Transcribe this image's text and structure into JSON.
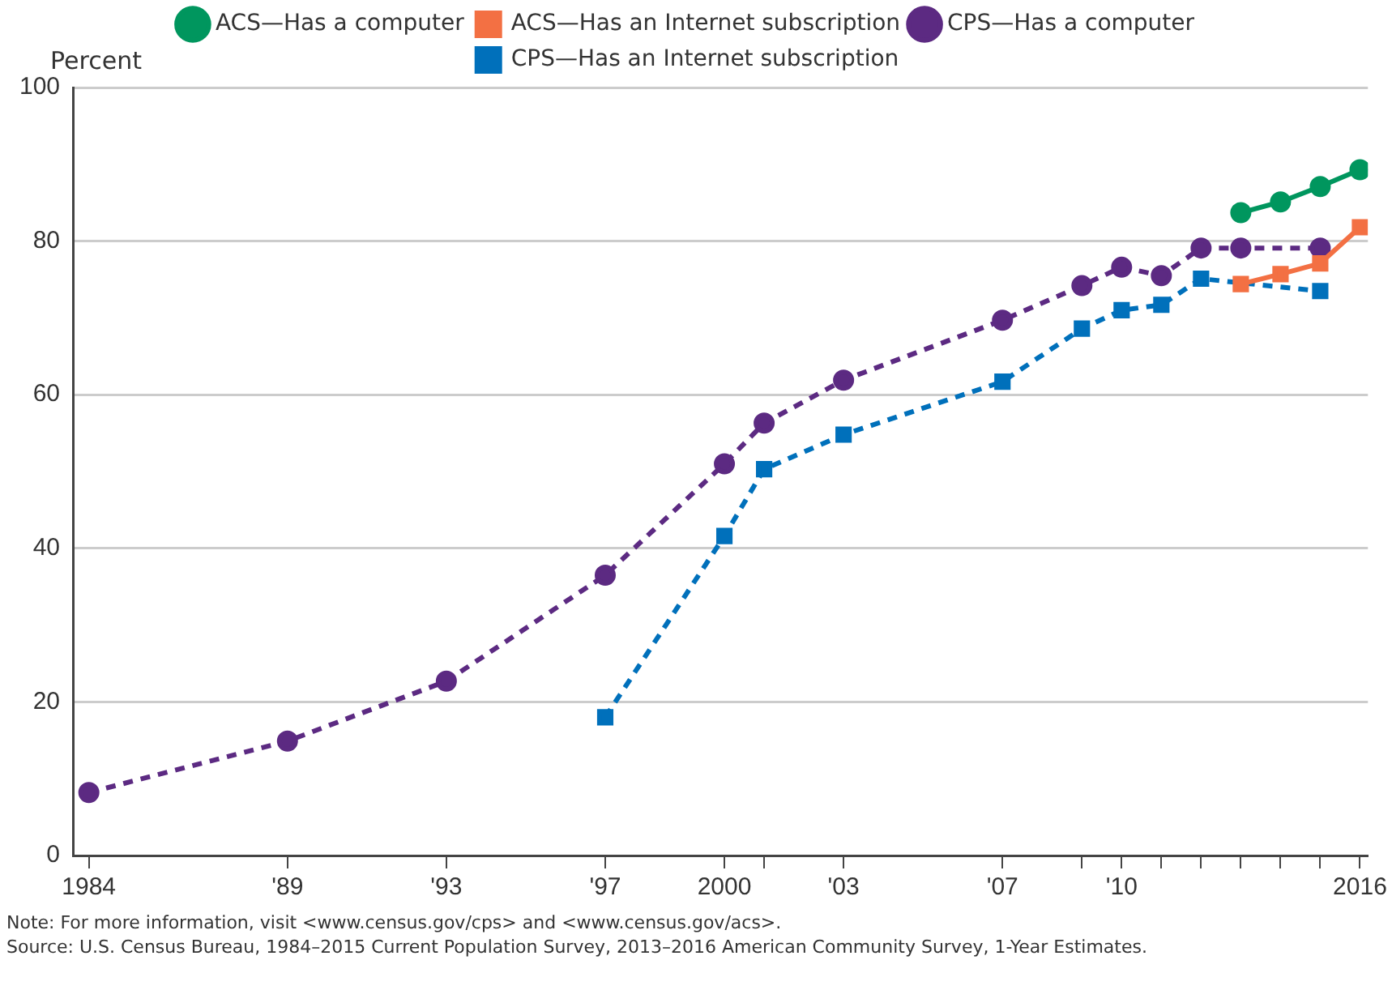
{
  "chart_data": {
    "type": "line",
    "ylabel": "Percent",
    "xlim": [
      1983.6,
      2016.2
    ],
    "ylim": [
      0,
      100
    ],
    "xticks": [
      1984,
      {
        "value": 1989,
        "label": "'89"
      },
      {
        "value": 1993,
        "label": "'93"
      },
      {
        "value": 1997,
        "label": "'97"
      },
      2000,
      {
        "value": 2001,
        "label": null
      },
      {
        "value": 2003,
        "label": "'03"
      },
      {
        "value": 2007,
        "label": "'07"
      },
      {
        "value": 2009,
        "label": null
      },
      {
        "value": 2010,
        "label": "'10"
      },
      {
        "value": 2011,
        "label": null
      },
      {
        "value": 2012,
        "label": null
      },
      {
        "value": 2013,
        "label": null
      },
      {
        "value": 2014,
        "label": null
      },
      {
        "value": 2015,
        "label": null
      },
      2016
    ],
    "yticks": [
      0,
      20,
      40,
      60,
      80,
      100
    ],
    "grid": "y",
    "legend": "top",
    "series": [
      {
        "name": "ACS—Has a computer",
        "color": "#00965e",
        "marker": "circle",
        "line_style": "solid",
        "x": [
          2013,
          2014,
          2015,
          2016
        ],
        "values": [
          83.7,
          85.1,
          87.1,
          89.3
        ]
      },
      {
        "name": "ACS—Has an Internet subscription",
        "color": "#f37043",
        "marker": "square",
        "line_style": "solid",
        "x": [
          2013,
          2014,
          2015,
          2016
        ],
        "values": [
          74.4,
          75.7,
          77.1,
          81.8
        ]
      },
      {
        "name": "CPS—Has a computer",
        "color": "#5c2a82",
        "marker": "circle",
        "line_style": "dashed",
        "x": [
          1984,
          1989,
          1993,
          1997,
          2000,
          2001,
          2003,
          2007,
          2009,
          2010,
          2011,
          2012,
          2013,
          2015
        ],
        "values": [
          8.2,
          14.9,
          22.7,
          36.5,
          51.0,
          56.3,
          61.9,
          69.7,
          74.2,
          76.6,
          75.5,
          79.1,
          79.1,
          79.1
        ]
      },
      {
        "name": "CPS—Has an Internet subscription",
        "color": "#0070bb",
        "marker": "square",
        "line_style": "dashed",
        "x": [
          1997,
          2000,
          2001,
          2003,
          2007,
          2009,
          2010,
          2011,
          2012,
          2015
        ],
        "values": [
          18.0,
          41.6,
          50.3,
          54.8,
          61.7,
          68.6,
          71.0,
          71.7,
          75.1,
          73.5
        ]
      }
    ],
    "annotations": [
      "Note: For more information, visit <www.census.gov/cps> and <www.census.gov/acs>.",
      "Source: U.S. Census Bureau, 1984–2015 Current Population Survey, 2013–2016 American Community Survey, 1-Year Estimates."
    ]
  }
}
